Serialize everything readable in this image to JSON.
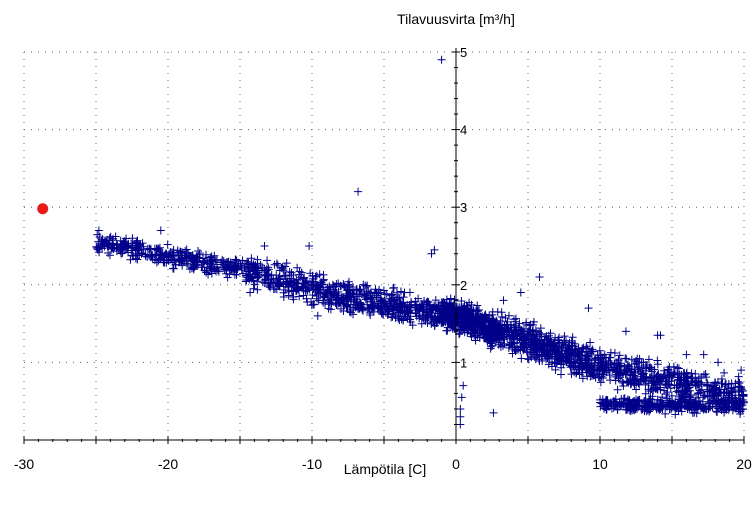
{
  "chart_data": {
    "type": "scatter",
    "title": "",
    "ylabel": "Tilavuusvirta [m³/h]",
    "xlabel": "Lämpötila [C]",
    "xlim": [
      -30,
      20
    ],
    "ylim": [
      0,
      5
    ],
    "x_ticks": [
      -30,
      -20,
      -10,
      0,
      10,
      20
    ],
    "y_ticks": [
      1,
      2,
      3,
      4,
      5
    ],
    "grid": true,
    "colors": {
      "measured": "#00008b",
      "highlight": "#e81a1a"
    },
    "series": [
      {
        "marker": "plus",
        "color": "#00008b",
        "bands": [
          {
            "x_from": -25,
            "x_to": -15,
            "y_at_from": 2.55,
            "y_at_to": 2.2,
            "spread": 0.18,
            "count": 340
          },
          {
            "x_from": -15,
            "x_to": -8,
            "y_at_from": 2.2,
            "y_at_to": 1.85,
            "spread": 0.28,
            "count": 300
          },
          {
            "x_from": -8,
            "x_to": -1,
            "y_at_from": 1.85,
            "y_at_to": 1.6,
            "spread": 0.28,
            "count": 360
          },
          {
            "x_from": -1,
            "x_to": 3,
            "y_at_from": 1.65,
            "y_at_to": 1.4,
            "spread": 0.3,
            "count": 500
          },
          {
            "x_from": 3,
            "x_to": 10,
            "y_at_from": 1.4,
            "y_at_to": 0.95,
            "spread": 0.32,
            "count": 520
          },
          {
            "x_from": 10,
            "x_to": 20,
            "y_at_from": 0.95,
            "y_at_to": 0.55,
            "spread": 0.32,
            "count": 480
          },
          {
            "x_from": 10,
            "x_to": 20,
            "y_at_from": 0.45,
            "y_at_to": 0.45,
            "spread": 0.14,
            "count": 320
          }
        ],
        "points": [
          [
            -1.0,
            4.9
          ],
          [
            -6.8,
            3.2
          ],
          [
            -1.5,
            2.45
          ],
          [
            -1.7,
            2.4
          ],
          [
            0.3,
            0.2
          ],
          [
            0.3,
            0.3
          ],
          [
            0.3,
            0.4
          ],
          [
            0.4,
            0.55
          ],
          [
            0.5,
            0.7
          ],
          [
            2.6,
            0.35
          ],
          [
            5.8,
            2.1
          ],
          [
            9.2,
            1.7
          ],
          [
            11.8,
            1.4
          ],
          [
            14.2,
            1.35
          ],
          [
            14.0,
            1.35
          ],
          [
            16.0,
            1.1
          ],
          [
            17.2,
            1.1
          ],
          [
            18.2,
            1.0
          ],
          [
            19.8,
            0.9
          ],
          [
            19.6,
            0.75
          ],
          [
            4.5,
            1.9
          ],
          [
            -3.2,
            1.9
          ],
          [
            3.3,
            1.8
          ],
          [
            -13.3,
            2.5
          ],
          [
            -10.2,
            2.5
          ],
          [
            -9.6,
            1.6
          ],
          [
            -14.3,
            1.9
          ],
          [
            -20.5,
            2.7
          ],
          [
            -24.8,
            2.7
          ]
        ]
      },
      {
        "marker": "circle",
        "color": "#e81a1a",
        "points": [
          [
            -28.7,
            2.98
          ]
        ]
      }
    ]
  }
}
